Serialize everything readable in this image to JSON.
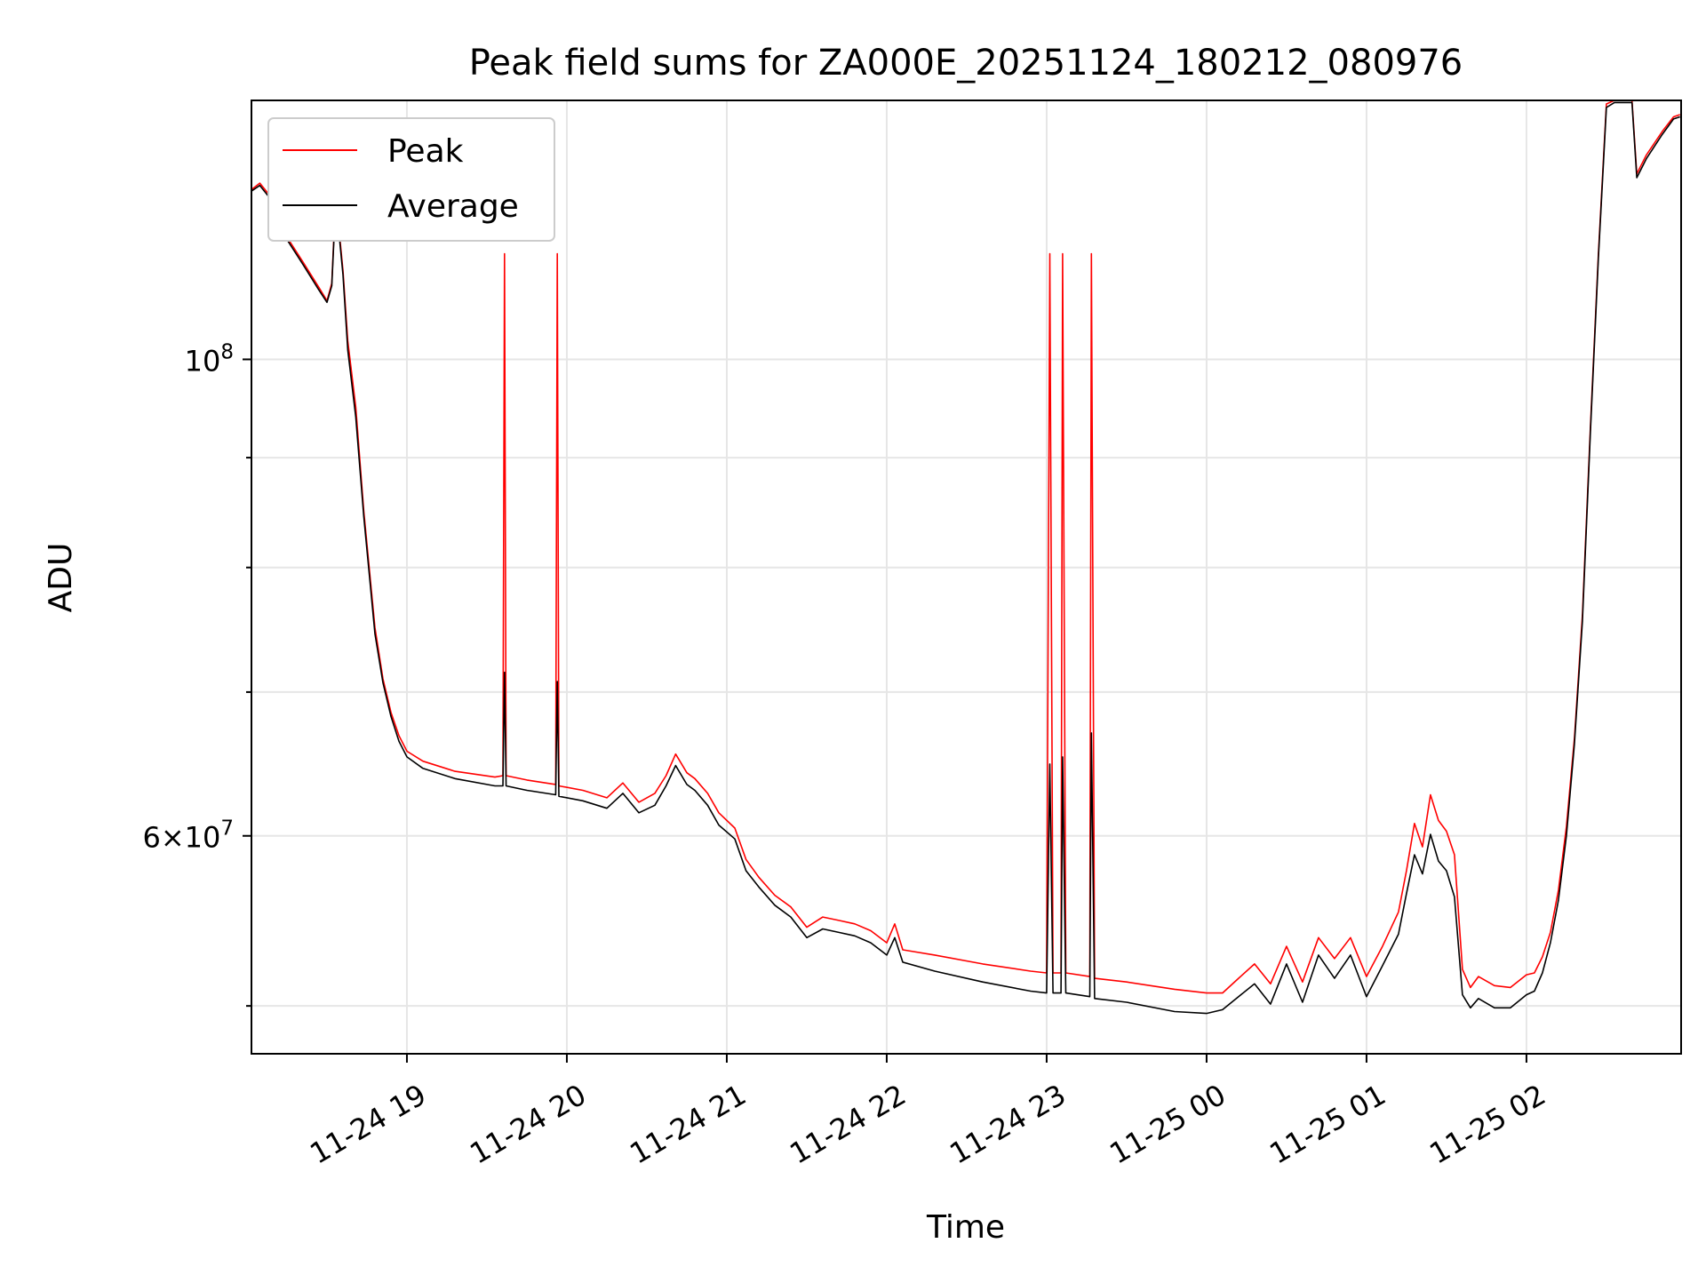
{
  "chart_data": {
    "type": "line",
    "title": "Peak field sums for ZA000E_20251124_180212_080976",
    "xlabel": "Time",
    "ylabel": "ADU",
    "yscale": "log",
    "grid": true,
    "legend_position": "top-left",
    "x_unit": "hours since 2025-11-24 00:00",
    "xlim": [
      18.028,
      26.967
    ],
    "ylim": [
      47500000,
      132000000
    ],
    "x_ticks": [
      {
        "value": 19,
        "label": "11-24 19"
      },
      {
        "value": 20,
        "label": "11-24 20"
      },
      {
        "value": 21,
        "label": "11-24 21"
      },
      {
        "value": 22,
        "label": "11-24 22"
      },
      {
        "value": 23,
        "label": "11-24 23"
      },
      {
        "value": 24,
        "label": "11-25 00"
      },
      {
        "value": 25,
        "label": "11-25 01"
      },
      {
        "value": 26,
        "label": "11-25 02"
      }
    ],
    "y_major_ticks": [
      {
        "value": 100000000,
        "base": "10",
        "exp": "8"
      },
      {
        "value": 60000000,
        "mant": "6",
        "base": "10",
        "exp": "7"
      }
    ],
    "y_minor_ticks": [
      50000000,
      70000000,
      80000000,
      90000000
    ],
    "series": [
      {
        "name": "Peak",
        "color": "#ff0000",
        "points": [
          [
            18.03,
            120000000
          ],
          [
            18.08,
            120800000
          ],
          [
            18.15,
            119000000
          ],
          [
            18.25,
            114000000
          ],
          [
            18.35,
            111000000
          ],
          [
            18.45,
            108000000
          ],
          [
            18.5,
            106500000
          ],
          [
            18.53,
            108500000
          ],
          [
            18.55,
            117000000
          ],
          [
            18.57,
            116000000
          ],
          [
            18.6,
            110000000
          ],
          [
            18.63,
            102000000
          ],
          [
            18.68,
            95000000
          ],
          [
            18.73,
            85000000
          ],
          [
            18.8,
            75000000
          ],
          [
            18.85,
            71000000
          ],
          [
            18.9,
            68500000
          ],
          [
            18.95,
            66800000
          ],
          [
            19.0,
            65700000
          ],
          [
            19.1,
            65000000
          ],
          [
            19.3,
            64300000
          ],
          [
            19.55,
            63900000
          ],
          [
            19.6,
            64000000
          ],
          [
            19.61,
            112000000
          ],
          [
            19.62,
            64000000
          ],
          [
            19.75,
            63700000
          ],
          [
            19.93,
            63400000
          ],
          [
            19.94,
            112000000
          ],
          [
            19.95,
            63300000
          ],
          [
            20.1,
            63000000
          ],
          [
            20.25,
            62500000
          ],
          [
            20.35,
            63500000
          ],
          [
            20.45,
            62200000
          ],
          [
            20.55,
            62800000
          ],
          [
            20.62,
            64000000
          ],
          [
            20.68,
            65500000
          ],
          [
            20.75,
            64200000
          ],
          [
            20.8,
            63800000
          ],
          [
            20.88,
            62800000
          ],
          [
            20.95,
            61500000
          ],
          [
            21.05,
            60500000
          ],
          [
            21.12,
            58500000
          ],
          [
            21.2,
            57400000
          ],
          [
            21.3,
            56300000
          ],
          [
            21.4,
            55600000
          ],
          [
            21.5,
            54400000
          ],
          [
            21.6,
            55000000
          ],
          [
            21.7,
            54800000
          ],
          [
            21.8,
            54600000
          ],
          [
            21.9,
            54200000
          ],
          [
            22.0,
            53500000
          ],
          [
            22.05,
            54600000
          ],
          [
            22.1,
            53100000
          ],
          [
            22.3,
            52800000
          ],
          [
            22.6,
            52300000
          ],
          [
            22.9,
            51900000
          ],
          [
            23.0,
            51800000
          ],
          [
            23.02,
            112000000
          ],
          [
            23.04,
            51800000
          ],
          [
            23.09,
            51800000
          ],
          [
            23.1,
            112000000
          ],
          [
            23.12,
            51800000
          ],
          [
            23.27,
            51600000
          ],
          [
            23.28,
            112000000
          ],
          [
            23.3,
            51500000
          ],
          [
            23.5,
            51300000
          ],
          [
            23.8,
            50900000
          ],
          [
            24.0,
            50700000
          ],
          [
            24.1,
            50700000
          ],
          [
            24.2,
            51500000
          ],
          [
            24.3,
            52300000
          ],
          [
            24.4,
            51200000
          ],
          [
            24.5,
            53300000
          ],
          [
            24.6,
            51300000
          ],
          [
            24.7,
            53800000
          ],
          [
            24.8,
            52600000
          ],
          [
            24.9,
            53800000
          ],
          [
            25.0,
            51600000
          ],
          [
            25.1,
            53300000
          ],
          [
            25.2,
            55300000
          ],
          [
            25.25,
            57800000
          ],
          [
            25.3,
            60800000
          ],
          [
            25.35,
            59300000
          ],
          [
            25.4,
            62700000
          ],
          [
            25.45,
            61000000
          ],
          [
            25.5,
            60300000
          ],
          [
            25.55,
            58800000
          ],
          [
            25.6,
            52000000
          ],
          [
            25.65,
            51000000
          ],
          [
            25.7,
            51600000
          ],
          [
            25.8,
            51100000
          ],
          [
            25.9,
            51000000
          ],
          [
            26.0,
            51700000
          ],
          [
            26.05,
            51800000
          ],
          [
            26.1,
            52700000
          ],
          [
            26.15,
            54100000
          ],
          [
            26.2,
            56600000
          ],
          [
            26.25,
            60600000
          ],
          [
            26.3,
            66600000
          ],
          [
            26.35,
            76000000
          ],
          [
            26.4,
            93000000
          ],
          [
            26.45,
            112000000
          ],
          [
            26.5,
            131500000
          ],
          [
            26.55,
            132000000
          ],
          [
            26.66,
            132000000
          ],
          [
            26.69,
            122000000
          ],
          [
            26.75,
            124500000
          ],
          [
            26.85,
            127700000
          ],
          [
            26.92,
            129700000
          ],
          [
            26.96,
            130000000
          ]
        ]
      },
      {
        "name": "Average",
        "color": "#000000",
        "points": [
          [
            18.03,
            119800000
          ],
          [
            18.08,
            120500000
          ],
          [
            18.15,
            118700000
          ],
          [
            18.25,
            113700000
          ],
          [
            18.35,
            110700000
          ],
          [
            18.45,
            107700000
          ],
          [
            18.5,
            106300000
          ],
          [
            18.53,
            108200000
          ],
          [
            18.55,
            116500000
          ],
          [
            18.57,
            115500000
          ],
          [
            18.6,
            109500000
          ],
          [
            18.63,
            101000000
          ],
          [
            18.68,
            94000000
          ],
          [
            18.73,
            84500000
          ],
          [
            18.8,
            74500000
          ],
          [
            18.85,
            70700000
          ],
          [
            18.9,
            68200000
          ],
          [
            18.95,
            66400000
          ],
          [
            19.0,
            65300000
          ],
          [
            19.1,
            64500000
          ],
          [
            19.3,
            63800000
          ],
          [
            19.55,
            63300000
          ],
          [
            19.6,
            63300000
          ],
          [
            19.61,
            71500000
          ],
          [
            19.62,
            63300000
          ],
          [
            19.75,
            63000000
          ],
          [
            19.93,
            62700000
          ],
          [
            19.94,
            70800000
          ],
          [
            19.95,
            62600000
          ],
          [
            20.1,
            62300000
          ],
          [
            20.25,
            61800000
          ],
          [
            20.35,
            62800000
          ],
          [
            20.45,
            61500000
          ],
          [
            20.55,
            62000000
          ],
          [
            20.62,
            63300000
          ],
          [
            20.68,
            64700000
          ],
          [
            20.75,
            63400000
          ],
          [
            20.8,
            63000000
          ],
          [
            20.88,
            62000000
          ],
          [
            20.95,
            60700000
          ],
          [
            21.05,
            59800000
          ],
          [
            21.12,
            57800000
          ],
          [
            21.2,
            56800000
          ],
          [
            21.3,
            55700000
          ],
          [
            21.4,
            55000000
          ],
          [
            21.5,
            53800000
          ],
          [
            21.6,
            54300000
          ],
          [
            21.7,
            54100000
          ],
          [
            21.8,
            53900000
          ],
          [
            21.9,
            53500000
          ],
          [
            22.0,
            52800000
          ],
          [
            22.05,
            53800000
          ],
          [
            22.1,
            52400000
          ],
          [
            22.3,
            51900000
          ],
          [
            22.6,
            51300000
          ],
          [
            22.9,
            50800000
          ],
          [
            23.0,
            50700000
          ],
          [
            23.02,
            64800000
          ],
          [
            23.04,
            50700000
          ],
          [
            23.09,
            50700000
          ],
          [
            23.1,
            65300000
          ],
          [
            23.12,
            50700000
          ],
          [
            23.27,
            50500000
          ],
          [
            23.28,
            67000000
          ],
          [
            23.3,
            50400000
          ],
          [
            23.5,
            50200000
          ],
          [
            23.8,
            49700000
          ],
          [
            24.0,
            49600000
          ],
          [
            24.1,
            49800000
          ],
          [
            24.2,
            50500000
          ],
          [
            24.3,
            51200000
          ],
          [
            24.4,
            50100000
          ],
          [
            24.5,
            52300000
          ],
          [
            24.6,
            50200000
          ],
          [
            24.7,
            52800000
          ],
          [
            24.8,
            51500000
          ],
          [
            24.9,
            52800000
          ],
          [
            25.0,
            50500000
          ],
          [
            25.1,
            52200000
          ],
          [
            25.2,
            54000000
          ],
          [
            25.25,
            56400000
          ],
          [
            25.3,
            58800000
          ],
          [
            25.35,
            57600000
          ],
          [
            25.4,
            60100000
          ],
          [
            25.45,
            58400000
          ],
          [
            25.5,
            57800000
          ],
          [
            25.55,
            56200000
          ],
          [
            25.6,
            50600000
          ],
          [
            25.65,
            49900000
          ],
          [
            25.7,
            50400000
          ],
          [
            25.8,
            49900000
          ],
          [
            25.9,
            49900000
          ],
          [
            26.0,
            50600000
          ],
          [
            26.05,
            50800000
          ],
          [
            26.1,
            51800000
          ],
          [
            26.15,
            53500000
          ],
          [
            26.2,
            56000000
          ],
          [
            26.25,
            60000000
          ],
          [
            26.3,
            66200000
          ],
          [
            26.35,
            75500000
          ],
          [
            26.4,
            92500000
          ],
          [
            26.45,
            111500000
          ],
          [
            26.5,
            131000000
          ],
          [
            26.55,
            131700000
          ],
          [
            26.66,
            131700000
          ],
          [
            26.69,
            121500000
          ],
          [
            26.75,
            124000000
          ],
          [
            26.85,
            127300000
          ],
          [
            26.92,
            129400000
          ],
          [
            26.96,
            129700000
          ]
        ]
      }
    ]
  }
}
